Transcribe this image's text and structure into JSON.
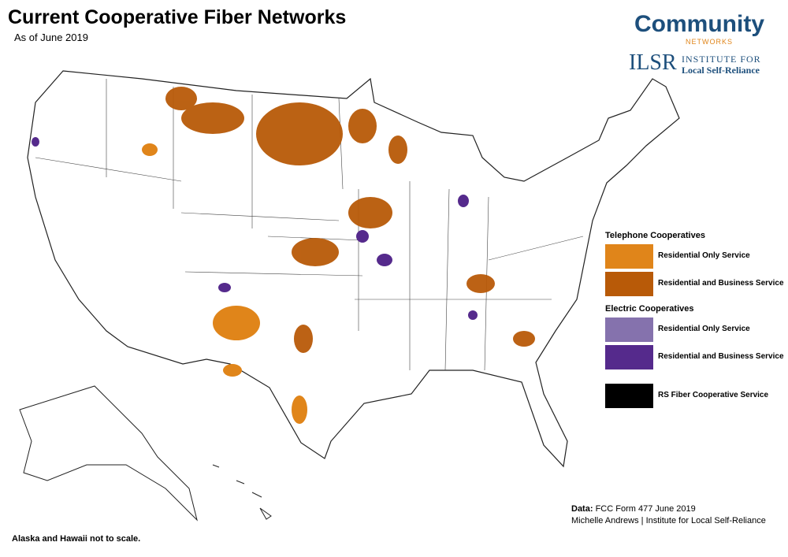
{
  "header": {
    "title": "Current Cooperative Fiber Networks",
    "subtitle": "As of June 2019"
  },
  "logos": {
    "community": "Community",
    "networks": "NETWORKS",
    "ilsr": "ILSR",
    "institute": "INSTITUTE FOR",
    "local": "Local Self-Reliance"
  },
  "legend": {
    "groups": [
      {
        "title": "Telephone Cooperatives",
        "items": [
          {
            "label": "Residential Only Service",
            "color": "#e0851a"
          },
          {
            "label": "Residential and Business Service",
            "color": "#b85a08"
          }
        ]
      },
      {
        "title": "Electric Cooperatives",
        "items": [
          {
            "label": "Residential Only Service",
            "color": "#8572ad"
          },
          {
            "label": "Residential and Business Service",
            "color": "#552a8c"
          }
        ]
      },
      {
        "items": [
          {
            "label": "RS Fiber Cooperative Service",
            "color": "#000000"
          }
        ]
      }
    ]
  },
  "source": {
    "prefix": "Data:",
    "text": "FCC Form 477 June 2019",
    "credit": "Michelle Andrews | Institute for Local Self-Reliance"
  },
  "note": "Alaska and Hawaii not to scale."
}
